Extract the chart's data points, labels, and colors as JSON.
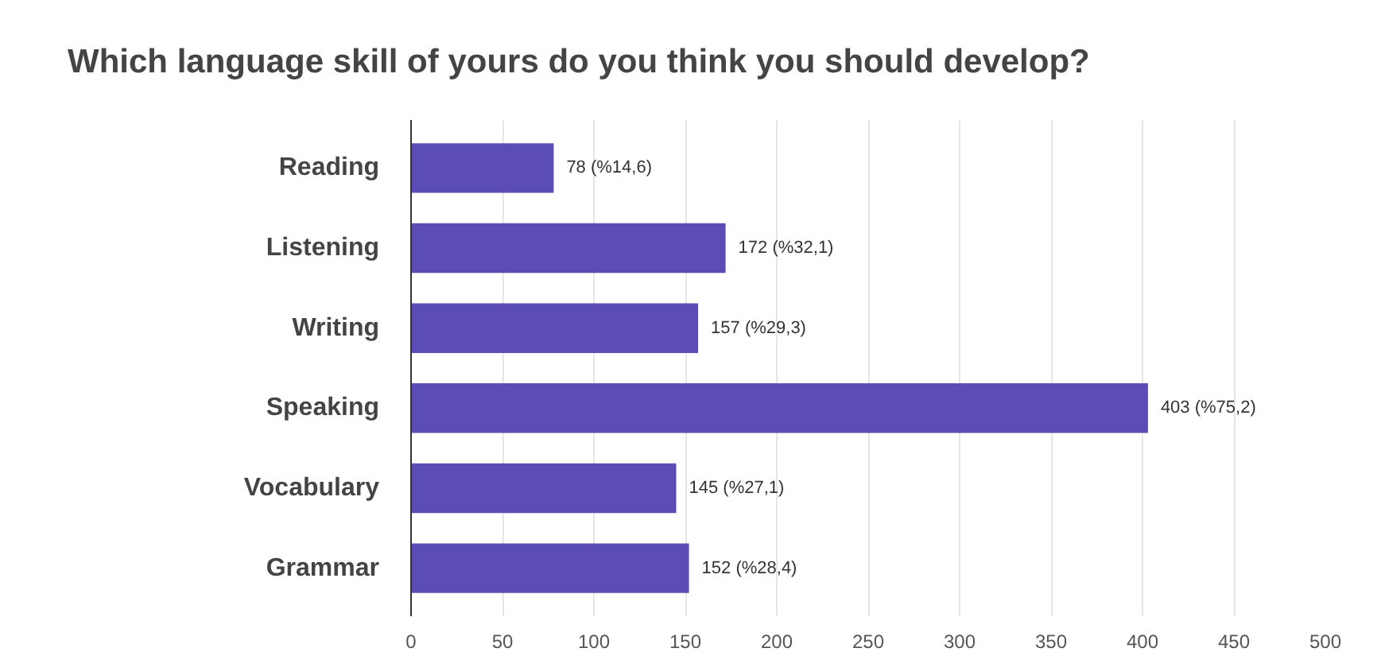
{
  "chart_data": {
    "type": "bar",
    "orientation": "horizontal",
    "title": "Which language skill of yours do you think you should develop?",
    "categories": [
      "Reading",
      "Listening",
      "Writing",
      "Speaking",
      "Vocabulary",
      "Grammar"
    ],
    "values": [
      78,
      172,
      157,
      403,
      145,
      152
    ],
    "value_labels": [
      "78 (%14,6)",
      "172 (%32,1)",
      "157 (%29,3)",
      "403 (%75,2)",
      "145 (%27,1)",
      "152 (%28,4)"
    ],
    "color": "#5b4db5",
    "xlim": [
      0,
      500
    ],
    "xticks": [
      0,
      50,
      100,
      150,
      200,
      250,
      300,
      350,
      400,
      450,
      500
    ],
    "grid": "x"
  }
}
